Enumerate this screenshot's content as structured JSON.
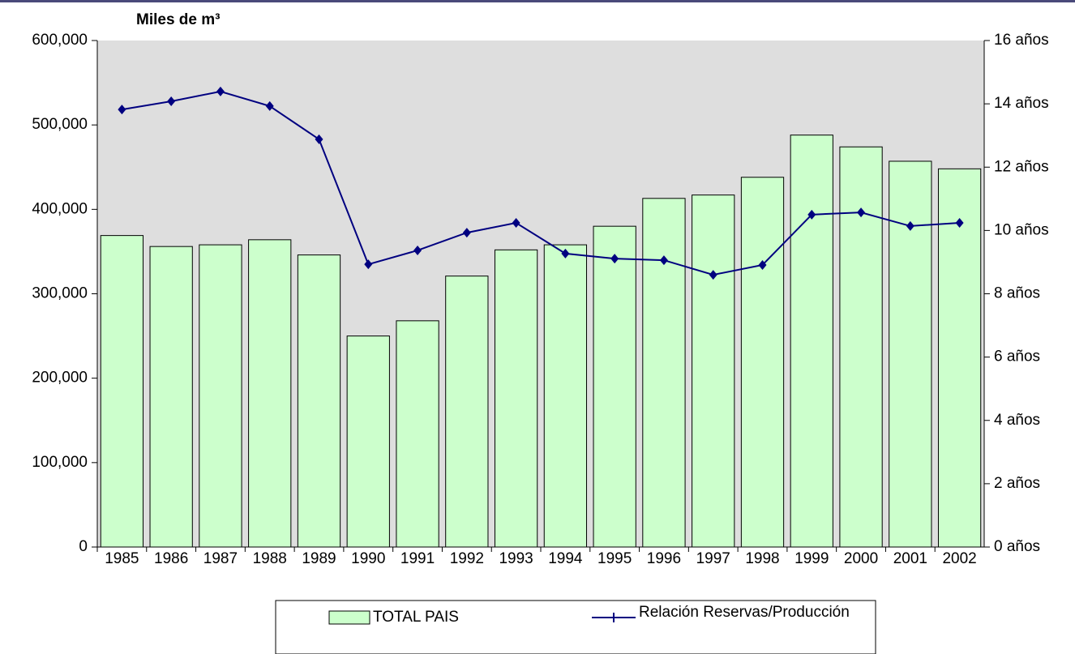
{
  "chart_data": {
    "type": "bar",
    "ylabel": "Miles de m³",
    "categories": [
      "1985",
      "1986",
      "1987",
      "1988",
      "1989",
      "1990",
      "1991",
      "1992",
      "1993",
      "1994",
      "1995",
      "1996",
      "1997",
      "1998",
      "1999",
      "2000",
      "2001",
      "2002"
    ],
    "series": [
      {
        "name": "TOTAL PAIS",
        "type": "bar",
        "color": "#ccffcc",
        "axis": "y",
        "values": [
          369000,
          356000,
          358000,
          364000,
          346000,
          250000,
          268000,
          321000,
          352000,
          358000,
          380000,
          413000,
          417000,
          438000,
          488000,
          474000,
          457000,
          448000
        ]
      },
      {
        "name": "Relación Reservas/Producción",
        "type": "line",
        "color": "#000080",
        "axis": "y2",
        "values": [
          13.82,
          14.08,
          14.39,
          13.93,
          12.88,
          8.93,
          9.37,
          9.93,
          10.24,
          9.27,
          9.11,
          9.06,
          8.6,
          8.91,
          10.5,
          10.57,
          10.14,
          10.24
        ]
      }
    ],
    "ylim": [
      0,
      600000
    ],
    "yticks": [
      0,
      {
        "value": 100000,
        "label": "100,000"
      },
      {
        "value": 200000,
        "label": "200,000"
      },
      {
        "value": 300000,
        "label": "300,000"
      },
      {
        "value": 400000,
        "label": "400,000"
      },
      {
        "value": 500000,
        "label": "500,000"
      },
      {
        "value": 600000,
        "label": "600,000"
      }
    ],
    "y2lim": [
      0,
      16
    ],
    "y2ticks": [
      {
        "value": 0,
        "label": "0 años"
      },
      {
        "value": 2,
        "label": "2 años"
      },
      {
        "value": 4,
        "label": "4 años"
      },
      {
        "value": 6,
        "label": "6 años"
      },
      {
        "value": 8,
        "label": "8 años"
      },
      {
        "value": 10,
        "label": "10 años"
      },
      {
        "value": 12,
        "label": "12 años"
      },
      {
        "value": 14,
        "label": "14 años"
      },
      {
        "value": 16,
        "label": "16 años"
      }
    ],
    "plot_background": "#dedede"
  }
}
